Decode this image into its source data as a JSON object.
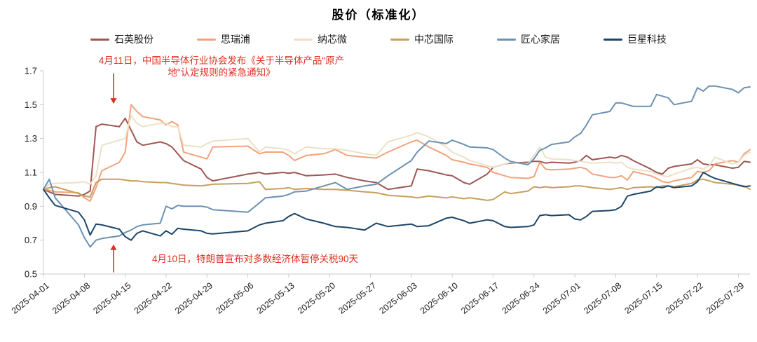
{
  "title": "股价（标准化）",
  "chart_data": {
    "type": "line",
    "title": "股价（标准化）",
    "xlabel": "",
    "ylabel": "",
    "ylim": [
      0.5,
      1.7
    ],
    "y_ticks": [
      0.5,
      0.7,
      0.9,
      1.1,
      1.3,
      1.5,
      1.7
    ],
    "grid": "off",
    "legend_position": "top",
    "x_tick_labels": [
      "2025-04-01",
      "2025-04-08",
      "2025-04-15",
      "2025-04-22",
      "2025-04-29",
      "2025-05-06",
      "2025-05-13",
      "2025-05-20",
      "2025-05-27",
      "2025-06-03",
      "2025-06-10",
      "2025-06-17",
      "2025-06-24",
      "2025-07-01",
      "2025-07-08",
      "2025-07-15",
      "2025-07-22",
      "2025-07-29"
    ],
    "x_dates": [
      "04-01",
      "04-02",
      "04-03",
      "04-07",
      "04-08",
      "04-09",
      "04-10",
      "04-11",
      "04-14",
      "04-15",
      "04-16",
      "04-17",
      "04-18",
      "04-21",
      "04-22",
      "04-23",
      "04-24",
      "04-25",
      "04-28",
      "04-29",
      "04-30",
      "05-06",
      "05-08",
      "05-09",
      "05-12",
      "05-13",
      "05-14",
      "05-16",
      "05-19",
      "05-21",
      "05-23",
      "05-26",
      "05-28",
      "05-30",
      "06-03",
      "06-04",
      "06-06",
      "06-09",
      "06-10",
      "06-12",
      "06-13",
      "06-16",
      "06-17",
      "06-19",
      "06-20",
      "06-23",
      "06-24",
      "06-25",
      "06-26",
      "06-27",
      "06-30",
      "07-01",
      "07-02",
      "07-03",
      "07-04",
      "07-07",
      "07-08",
      "07-09",
      "07-10",
      "07-11",
      "07-14",
      "07-15",
      "07-16",
      "07-17",
      "07-18",
      "07-21",
      "07-22",
      "07-23",
      "07-24",
      "07-25",
      "07-28",
      "07-29",
      "07-30",
      "07-31"
    ],
    "series": [
      {
        "name": "石英股份",
        "color": "#9D5752",
        "values": [
          1.0,
          0.985,
          0.97,
          0.96,
          0.97,
          0.99,
          1.37,
          1.385,
          1.37,
          1.42,
          1.35,
          1.28,
          1.26,
          1.28,
          1.27,
          1.25,
          1.21,
          1.17,
          1.12,
          1.07,
          1.05,
          1.09,
          1.1,
          1.09,
          1.1,
          1.095,
          1.1,
          1.08,
          1.085,
          1.09,
          1.07,
          1.05,
          1.04,
          1.0,
          1.02,
          1.12,
          1.11,
          1.085,
          1.08,
          1.04,
          1.03,
          1.09,
          1.13,
          1.15,
          1.155,
          1.16,
          1.165,
          1.165,
          1.155,
          1.16,
          1.155,
          1.16,
          1.17,
          1.2,
          1.175,
          1.19,
          1.185,
          1.2,
          1.19,
          1.17,
          1.12,
          1.1,
          1.09,
          1.125,
          1.135,
          1.15,
          1.175,
          1.15,
          1.145,
          1.145,
          1.125,
          1.13,
          1.165,
          1.16
        ]
      },
      {
        "name": "思瑞浦",
        "color": "#F1A37C",
        "values": [
          1.0,
          0.995,
          0.985,
          0.98,
          0.95,
          0.93,
          1.01,
          1.11,
          1.16,
          1.22,
          1.5,
          1.46,
          1.43,
          1.41,
          1.38,
          1.4,
          1.38,
          1.22,
          1.19,
          1.18,
          1.25,
          1.255,
          1.21,
          1.22,
          1.22,
          1.2,
          1.17,
          1.2,
          1.21,
          1.235,
          1.2,
          1.19,
          1.185,
          1.22,
          1.28,
          1.29,
          1.25,
          1.2,
          1.175,
          1.16,
          1.15,
          1.13,
          1.1,
          1.08,
          1.07,
          1.065,
          1.075,
          1.16,
          1.12,
          1.115,
          1.12,
          1.125,
          1.13,
          1.12,
          1.09,
          1.07,
          1.07,
          1.08,
          1.055,
          1.105,
          1.08,
          1.065,
          1.045,
          1.04,
          1.05,
          1.07,
          1.105,
          1.1,
          1.11,
          1.15,
          1.17,
          1.16,
          1.21,
          1.235
        ]
      },
      {
        "name": "纳芯微",
        "color": "#ECE1C7",
        "values": [
          1.0,
          1.03,
          1.035,
          1.04,
          1.045,
          1.03,
          1.08,
          1.26,
          1.29,
          1.3,
          1.435,
          1.39,
          1.37,
          1.39,
          1.39,
          1.37,
          1.37,
          1.26,
          1.25,
          1.27,
          1.285,
          1.3,
          1.22,
          1.25,
          1.24,
          1.23,
          1.21,
          1.25,
          1.24,
          1.24,
          1.23,
          1.21,
          1.2,
          1.28,
          1.32,
          1.335,
          1.31,
          1.25,
          1.22,
          1.19,
          1.17,
          1.14,
          1.13,
          1.15,
          1.16,
          1.15,
          1.2,
          1.25,
          1.19,
          1.18,
          1.175,
          1.17,
          1.165,
          1.16,
          1.155,
          1.16,
          1.155,
          1.16,
          1.13,
          1.12,
          1.105,
          1.09,
          1.08,
          1.075,
          1.09,
          1.125,
          1.13,
          1.12,
          1.14,
          1.19,
          1.15,
          1.16,
          1.2,
          1.22
        ]
      },
      {
        "name": "中芯国际",
        "color": "#C79F5F",
        "values": [
          1.0,
          1.01,
          1.015,
          0.975,
          0.96,
          0.955,
          1.04,
          1.06,
          1.06,
          1.055,
          1.05,
          1.05,
          1.045,
          1.04,
          1.04,
          1.035,
          1.03,
          1.025,
          1.02,
          1.025,
          1.03,
          1.035,
          1.045,
          1.0,
          1.005,
          1.01,
          1.0,
          1.005,
          1.0,
          1.0,
          0.995,
          0.985,
          0.98,
          0.965,
          0.955,
          0.95,
          0.96,
          0.95,
          0.955,
          0.945,
          0.95,
          0.935,
          0.94,
          0.985,
          0.975,
          0.99,
          1.015,
          1.01,
          1.015,
          1.01,
          1.015,
          1.02,
          1.02,
          1.015,
          1.01,
          1.0,
          1.005,
          1.01,
          1.0,
          1.01,
          1.015,
          1.01,
          1.02,
          1.02,
          1.015,
          1.035,
          1.055,
          1.06,
          1.05,
          1.04,
          1.03,
          1.025,
          1.02,
          1.0
        ]
      },
      {
        "name": "匠心家居",
        "color": "#6C91B3",
        "values": [
          1.0,
          1.06,
          0.95,
          0.79,
          0.715,
          0.66,
          0.7,
          0.71,
          0.725,
          0.745,
          0.76,
          0.78,
          0.79,
          0.8,
          0.9,
          0.885,
          0.905,
          0.9,
          0.9,
          0.895,
          0.88,
          0.865,
          0.92,
          0.95,
          0.96,
          0.97,
          0.985,
          0.99,
          1.02,
          1.04,
          1.0,
          1.02,
          1.03,
          1.08,
          1.17,
          1.22,
          1.285,
          1.27,
          1.29,
          1.265,
          1.25,
          1.245,
          1.235,
          1.185,
          1.165,
          1.145,
          1.18,
          1.23,
          1.245,
          1.265,
          1.28,
          1.31,
          1.33,
          1.38,
          1.44,
          1.46,
          1.51,
          1.51,
          1.5,
          1.49,
          1.49,
          1.56,
          1.55,
          1.54,
          1.5,
          1.52,
          1.6,
          1.58,
          1.61,
          1.61,
          1.59,
          1.57,
          1.6,
          1.605
        ]
      },
      {
        "name": "巨星科技",
        "color": "#1C4668",
        "values": [
          1.0,
          0.95,
          0.905,
          0.865,
          0.82,
          0.73,
          0.795,
          0.79,
          0.765,
          0.72,
          0.7,
          0.74,
          0.755,
          0.725,
          0.755,
          0.735,
          0.77,
          0.765,
          0.755,
          0.74,
          0.737,
          0.755,
          0.79,
          0.8,
          0.815,
          0.84,
          0.857,
          0.825,
          0.8,
          0.78,
          0.775,
          0.76,
          0.8,
          0.78,
          0.795,
          0.78,
          0.785,
          0.83,
          0.835,
          0.815,
          0.8,
          0.82,
          0.815,
          0.78,
          0.775,
          0.78,
          0.79,
          0.845,
          0.85,
          0.845,
          0.85,
          0.825,
          0.82,
          0.84,
          0.87,
          0.875,
          0.88,
          0.9,
          0.96,
          0.97,
          0.99,
          1.015,
          1.01,
          1.02,
          1.01,
          1.02,
          1.045,
          1.1,
          1.08,
          1.065,
          1.035,
          1.025,
          1.015,
          1.02
        ]
      }
    ]
  },
  "annotations": [
    {
      "id": "semiconductor-notice",
      "color": "#E02E20",
      "lines": [
        "4月11日，中国半导体行业协会发布《关于半导体产品\"原产",
        "地\"认定规则的紧急通知》"
      ],
      "arrow": {
        "date": "04-13",
        "tail_value": 1.685,
        "head_value": 1.505,
        "direction": "down"
      }
    },
    {
      "id": "tariff-pause",
      "color": "#E02E20",
      "lines": [
        "4月10日，特朗普宣布对多数经济体暂停关税90天"
      ],
      "arrow": {
        "date": "04-13",
        "tail_value": 0.51,
        "head_value": 0.675,
        "direction": "up"
      }
    }
  ],
  "axis": {
    "line_color": "#C9C9C9",
    "tick_label_color": "#1A1A1A"
  }
}
